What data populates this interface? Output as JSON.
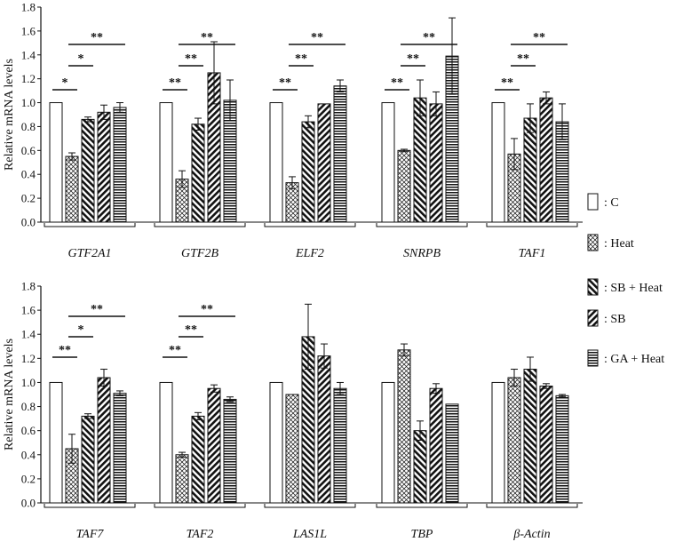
{
  "chart_data": [
    {
      "type": "bar",
      "panel": "top",
      "ylabel": "Relative mRNA levels",
      "ylim": [
        0.0,
        1.8
      ],
      "yticks": [
        "0.0",
        "0.2",
        "0.4",
        "0.6",
        "0.8",
        "1.0",
        "1.2",
        "1.4",
        "1.6",
        "1.8"
      ],
      "categories": [
        "GTF2A1",
        "GTF2B",
        "ELF2",
        "SNRPB",
        "TAF1"
      ],
      "series": [
        {
          "name": "C",
          "values": [
            1.0,
            1.0,
            1.0,
            1.0,
            1.0
          ],
          "errors": [
            0,
            0,
            0,
            0,
            0
          ]
        },
        {
          "name": "Heat",
          "values": [
            0.55,
            0.36,
            0.33,
            0.6,
            0.57
          ],
          "errors": [
            0.03,
            0.07,
            0.05,
            0.01,
            0.13
          ]
        },
        {
          "name": "SB + Heat",
          "values": [
            0.86,
            0.82,
            0.84,
            1.04,
            0.87
          ],
          "errors": [
            0.02,
            0.05,
            0.05,
            0.15,
            0.12
          ]
        },
        {
          "name": "SB",
          "values": [
            0.92,
            1.25,
            0.99,
            0.99,
            1.04
          ],
          "errors": [
            0.06,
            0.26,
            0.0,
            0.1,
            0.05
          ]
        },
        {
          "name": "GA + Heat",
          "values": [
            0.96,
            1.02,
            1.14,
            1.39,
            0.84
          ],
          "errors": [
            0.04,
            0.17,
            0.05,
            0.32,
            0.15
          ]
        }
      ],
      "significance": [
        {
          "category": 0,
          "from": 0,
          "to": 1,
          "label": "*"
        },
        {
          "category": 0,
          "from": 1,
          "to": 2,
          "label": "*"
        },
        {
          "category": 0,
          "from": 1,
          "to": 4,
          "label": "**"
        },
        {
          "category": 1,
          "from": 0,
          "to": 1,
          "label": "**"
        },
        {
          "category": 1,
          "from": 1,
          "to": 2,
          "label": "**"
        },
        {
          "category": 1,
          "from": 1,
          "to": 4,
          "label": "**"
        },
        {
          "category": 2,
          "from": 0,
          "to": 1,
          "label": "**"
        },
        {
          "category": 2,
          "from": 1,
          "to": 2,
          "label": "**"
        },
        {
          "category": 2,
          "from": 1,
          "to": 4,
          "label": "**"
        },
        {
          "category": 3,
          "from": 0,
          "to": 1,
          "label": "**"
        },
        {
          "category": 3,
          "from": 1,
          "to": 2,
          "label": "**"
        },
        {
          "category": 3,
          "from": 1,
          "to": 4,
          "label": "**"
        },
        {
          "category": 4,
          "from": 0,
          "to": 1,
          "label": "**"
        },
        {
          "category": 4,
          "from": 1,
          "to": 2,
          "label": "**"
        },
        {
          "category": 4,
          "from": 1,
          "to": 4,
          "label": "**"
        }
      ]
    },
    {
      "type": "bar",
      "panel": "bottom",
      "ylabel": "Relative mRNA levels",
      "ylim": [
        0.0,
        1.8
      ],
      "yticks": [
        "0.0",
        "0.2",
        "0.4",
        "0.6",
        "0.8",
        "1.0",
        "1.2",
        "1.4",
        "1.6",
        "1.8"
      ],
      "categories": [
        "TAF7",
        "TAF2",
        "LAS1L",
        "TBP",
        "β-Actin"
      ],
      "series": [
        {
          "name": "C",
          "values": [
            1.0,
            1.0,
            1.0,
            1.0,
            1.0
          ],
          "errors": [
            0,
            0,
            0,
            0,
            0
          ]
        },
        {
          "name": "Heat",
          "values": [
            0.45,
            0.4,
            0.9,
            1.27,
            1.04
          ],
          "errors": [
            0.12,
            0.02,
            0.0,
            0.05,
            0.07
          ]
        },
        {
          "name": "SB + Heat",
          "values": [
            0.72,
            0.72,
            1.38,
            0.6,
            1.11
          ],
          "errors": [
            0.02,
            0.03,
            0.27,
            0.08,
            0.1
          ]
        },
        {
          "name": "SB",
          "values": [
            1.04,
            0.95,
            1.22,
            0.95,
            0.97
          ],
          "errors": [
            0.07,
            0.03,
            0.1,
            0.04,
            0.02
          ]
        },
        {
          "name": "GA + Heat",
          "values": [
            0.91,
            0.86,
            0.95,
            0.82,
            0.89
          ],
          "errors": [
            0.02,
            0.02,
            0.05,
            0.0,
            0.01
          ]
        }
      ],
      "significance": [
        {
          "category": 0,
          "from": 0,
          "to": 1,
          "label": "**"
        },
        {
          "category": 0,
          "from": 1,
          "to": 2,
          "label": "*"
        },
        {
          "category": 0,
          "from": 1,
          "to": 4,
          "label": "**"
        },
        {
          "category": 1,
          "from": 0,
          "to": 1,
          "label": "**"
        },
        {
          "category": 1,
          "from": 1,
          "to": 2,
          "label": "**"
        },
        {
          "category": 1,
          "from": 1,
          "to": 4,
          "label": "**"
        }
      ]
    }
  ],
  "legend": [
    {
      "label": ": C",
      "pattern": "blank"
    },
    {
      "label": ": Heat",
      "pattern": "cross-hatch"
    },
    {
      "label": ": SB + Heat",
      "pattern": "back-diagonal"
    },
    {
      "label": ": SB",
      "pattern": "forward-diagonal"
    },
    {
      "label": ": GA + Heat",
      "pattern": "horizontal"
    }
  ],
  "colors": {
    "ink": "#111111",
    "background": "#ffffff"
  }
}
